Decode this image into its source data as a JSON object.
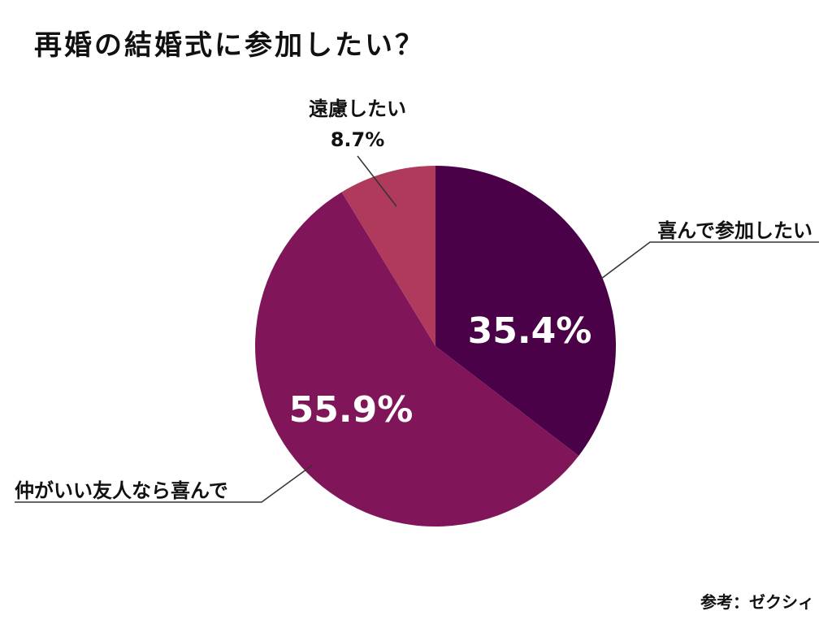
{
  "title": "再婚の結婚式に参加したい？",
  "source": "参考：ゼクシィ",
  "chart_data": {
    "type": "pie",
    "title": "再婚の結婚式に参加したい？",
    "slices": [
      {
        "label": "喜んで参加したい",
        "value": 35.4,
        "display": "35.4%",
        "color": "#4b0148"
      },
      {
        "label": "仲がいい友人なら喜んで",
        "value": 55.9,
        "display": "55.9%",
        "color": "#801659"
      },
      {
        "label": "遠慮したい",
        "value": 8.7,
        "display": "8.7%",
        "color": "#b03a5b"
      }
    ],
    "start_angle_deg": 0,
    "direction": "clockwise",
    "legend": "none"
  }
}
